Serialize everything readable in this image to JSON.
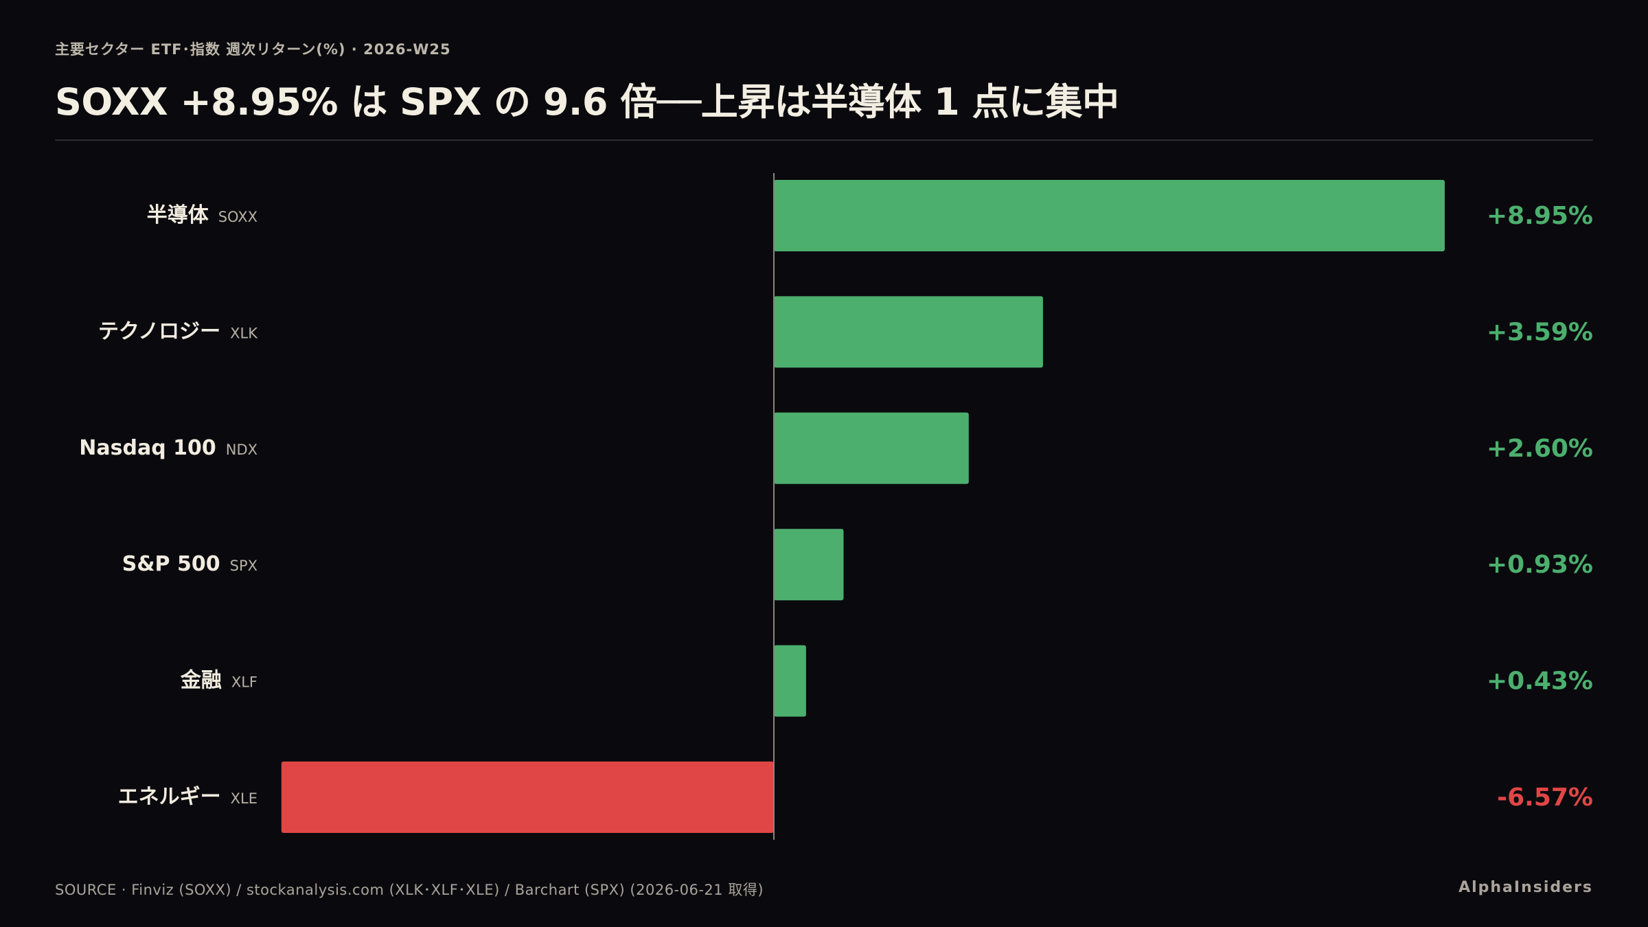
{
  "header": {
    "subtitle": "主要セクター ETF･指数 週次リターン(%) · 2026-W25",
    "title": "SOXX +8.95% は SPX の 9.6 倍──上昇は半導体 1 点に集中"
  },
  "footer": {
    "source": "SOURCE · Finviz (SOXX) / stockanalysis.com (XLK･XLF･XLE) / Barchart (SPX) (2026-06-21 取得)",
    "brand": "AlphaInsiders"
  },
  "colors": {
    "positive": "#4caf6e",
    "negative": "#e04646",
    "label": "#f2ece0",
    "ticker": "#b8b2a6",
    "axis": "#8a867e"
  },
  "chart_data": {
    "type": "bar",
    "orientation": "horizontal",
    "categories": [
      "半導体",
      "テクノロジー",
      "Nasdaq 100",
      "S&P 500",
      "金融",
      "エネルギー"
    ],
    "tickers": [
      "SOXX",
      "XLK",
      "NDX",
      "SPX",
      "XLF",
      "XLE"
    ],
    "values": [
      8.95,
      3.59,
      2.6,
      0.93,
      0.43,
      -6.57
    ],
    "value_labels": [
      "+8.95%",
      "+3.59%",
      "+2.60%",
      "+0.93%",
      "+0.43%",
      "-6.57%"
    ],
    "unit": "%",
    "xlim": [
      -6.57,
      8.95
    ],
    "grid": false,
    "legend": "none"
  }
}
